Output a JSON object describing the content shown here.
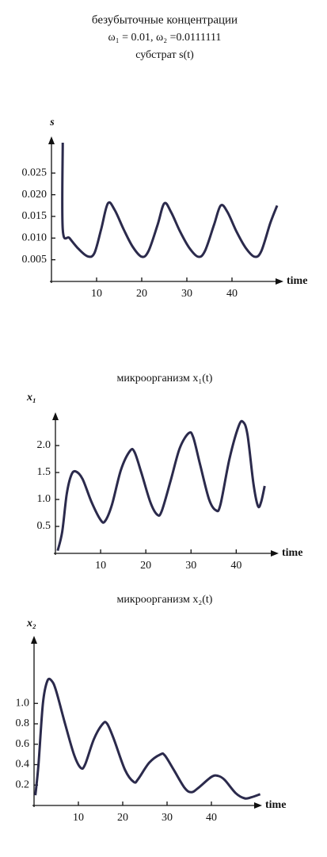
{
  "header": {
    "title": "безубыточные концентрации",
    "params": "ω₁ = 0.01, ω₂ =0.0111111"
  },
  "chart_data": [
    {
      "type": "line",
      "title": "субстрат s(t)",
      "y_label": "s",
      "x_label": "time",
      "color": "#2b2a4c",
      "xlim": [
        0,
        50
      ],
      "xticks": [
        10,
        20,
        30,
        40
      ],
      "ylim": [
        0,
        0.032
      ],
      "yticks": [
        0.005,
        {
          "value": 0.01,
          "label": "0.010"
        },
        0.015,
        {
          "value": 0.02,
          "label": "0.020"
        },
        0.025
      ],
      "x": [
        2.5,
        2.5,
        4,
        6,
        8,
        9.5,
        11,
        12.5,
        14,
        16,
        18,
        20,
        21.5,
        23.5,
        25,
        26.5,
        28.5,
        30.5,
        32.5,
        34,
        36,
        37.5,
        39,
        41,
        43,
        45,
        46.5,
        48.5,
        50
      ],
      "values": [
        0.032,
        0.012,
        0.01,
        0.0075,
        0.0058,
        0.0065,
        0.012,
        0.018,
        0.0165,
        0.012,
        0.008,
        0.0057,
        0.007,
        0.013,
        0.018,
        0.016,
        0.0115,
        0.0078,
        0.0057,
        0.007,
        0.013,
        0.0175,
        0.016,
        0.0115,
        0.0078,
        0.0057,
        0.007,
        0.0135,
        0.0175
      ]
    },
    {
      "type": "line",
      "title": "микроорганизм x₁(t)",
      "y_label": "x₁",
      "x_label": "time",
      "color": "#2b2a4c",
      "xlim": [
        0,
        48
      ],
      "xticks": [
        10,
        20,
        30,
        40
      ],
      "ylim": [
        0,
        2.5
      ],
      "yticks": [
        0.5,
        {
          "value": 1,
          "label": "1.0"
        },
        1.5,
        {
          "value": 2,
          "label": "2.0"
        }
      ],
      "x": [
        0.5,
        1.5,
        2.5,
        3.5,
        4.5,
        6,
        8,
        10,
        11,
        12.5,
        14.5,
        16.5,
        17.5,
        19,
        21,
        22.5,
        23.5,
        25.5,
        27.5,
        29.5,
        30.5,
        32,
        34,
        35.5,
        36.5,
        38.5,
        40.5,
        41.5,
        42.5,
        43.8,
        44.8,
        45.5,
        46.3
      ],
      "values": [
        0.05,
        0.4,
        1.1,
        1.45,
        1.52,
        1.38,
        0.95,
        0.62,
        0.6,
        0.9,
        1.55,
        1.9,
        1.88,
        1.5,
        0.95,
        0.72,
        0.78,
        1.35,
        1.95,
        2.23,
        2.15,
        1.65,
        1.0,
        0.8,
        0.9,
        1.75,
        2.35,
        2.44,
        2.2,
        1.3,
        0.88,
        0.95,
        1.25
      ]
    },
    {
      "type": "line",
      "title": "микроорганизм x₂(t)",
      "y_label": "x₂",
      "x_label": "time",
      "color": "#2b2a4c",
      "xlim": [
        0,
        50
      ],
      "xticks": [
        10,
        20,
        30,
        40
      ],
      "ylim": [
        0,
        1.6
      ],
      "yticks": [
        0.2,
        0.4,
        0.6,
        0.8,
        {
          "value": 1,
          "label": "1.0"
        }
      ],
      "x": [
        0.3,
        1,
        2,
        3,
        4,
        5,
        7,
        9,
        10.5,
        11.5,
        13.5,
        15.5,
        16.5,
        18,
        20.5,
        22.5,
        23.5,
        26,
        28.5,
        29.5,
        31.5,
        34,
        35.5,
        37,
        40,
        41.5,
        43,
        45.5,
        47.5,
        49,
        51
      ],
      "values": [
        0.1,
        0.4,
        1.0,
        1.22,
        1.22,
        1.12,
        0.8,
        0.5,
        0.37,
        0.4,
        0.65,
        0.8,
        0.8,
        0.65,
        0.35,
        0.23,
        0.26,
        0.42,
        0.5,
        0.49,
        0.35,
        0.17,
        0.13,
        0.17,
        0.28,
        0.29,
        0.25,
        0.12,
        0.07,
        0.08,
        0.11
      ]
    }
  ]
}
